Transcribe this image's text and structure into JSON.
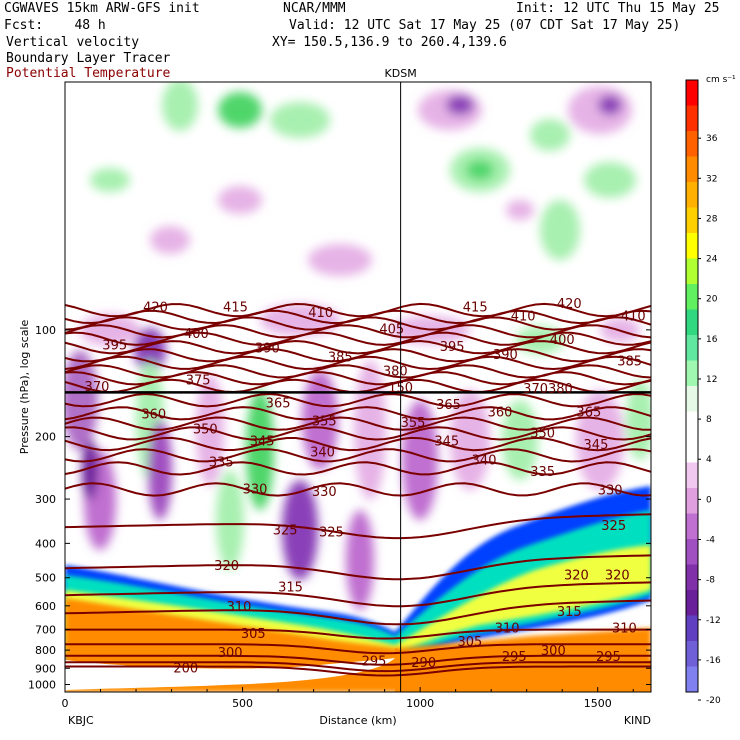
{
  "header": {
    "title": "CGWAVES 15km ARW-GFS init",
    "fcst_label": "Fcst:",
    "fcst_value": "48 h",
    "org": "NCAR/MMM",
    "init": "Init: 12 UTC Thu 15 May 25",
    "valid": "Valid: 12 UTC Sat 17 May 25 (07 CDT Sat 17 May 25)",
    "xy": "XY= 150.5,136.9 to 260.4,139.6",
    "var1": "Vertical velocity",
    "var2": "Boundary Layer Tracer",
    "var3": "Potential Temperature"
  },
  "colors": {
    "potential_temperature": "#7a0000",
    "strong_sink": "#6a1f9a",
    "weak_sink": "#e6b3e6",
    "weak_rise": "#a8f0b0",
    "moderate_rise": "#4fd66a",
    "tracer_low": "#0040ff",
    "tracer_mid": "#00e0c0",
    "tracer_high": "#f0ff40",
    "tracer_max": "#ff8c00"
  },
  "chart_data": {
    "type": "heatmap",
    "description_fields": [
      "Vertical velocity",
      "Boundary Layer Tracer",
      "Potential Temperature"
    ],
    "x_axis": {
      "label": "Distance (km)",
      "range": [
        0,
        1650
      ],
      "ticks": [
        0,
        500,
        1000,
        1500
      ],
      "left_station": "KBJC",
      "right_station": "KIND"
    },
    "y_axis": {
      "label": "Pressure (hPa), log scale",
      "scale": "log",
      "range_hpa": [
        1050,
        20
      ],
      "ticks": [
        100,
        200,
        300,
        400,
        500,
        600,
        700,
        800,
        900,
        1000
      ]
    },
    "station_marker": {
      "name": "KDSM",
      "x_km": 945
    },
    "colorbar": {
      "units": "cm s⁻¹",
      "tick_labels": [
        "36",
        "32",
        "28",
        "24",
        "20",
        "16",
        "12",
        "8",
        "4",
        "0",
        "-4",
        "-8",
        "-12",
        "-16",
        "-20"
      ],
      "colors": [
        "#ff0000",
        "#ff3000",
        "#ff6000",
        "#ff8c00",
        "#ffb000",
        "#ffd000",
        "#ffff00",
        "#b0ff30",
        "#60f060",
        "#30d880",
        "#60e8a0",
        "#a0f8b0",
        "#e6f9e6",
        "#ffffff",
        "#ffffff",
        "#f0c8f0",
        "#e0a0e0",
        "#c070d0",
        "#a050c0",
        "#8030a8",
        "#6a1f9a",
        "#6040c0",
        "#7060d8",
        "#8080f0"
      ]
    },
    "isentropes_K": [
      200,
      290,
      295,
      300,
      305,
      310,
      315,
      320,
      325,
      330,
      335,
      340,
      345,
      350,
      355,
      360,
      365,
      370,
      375,
      380,
      385,
      390,
      395,
      400,
      405,
      410,
      415,
      420
    ],
    "isentrope_labels": [
      {
        "text": "420",
        "x_km": 255,
        "p": 86
      },
      {
        "text": "415",
        "x_km": 480,
        "p": 86
      },
      {
        "text": "410",
        "x_km": 720,
        "p": 89
      },
      {
        "text": "405",
        "x_km": 920,
        "p": 99
      },
      {
        "text": "415",
        "x_km": 1155,
        "p": 86
      },
      {
        "text": "410",
        "x_km": 1290,
        "p": 91
      },
      {
        "text": "420",
        "x_km": 1420,
        "p": 84
      },
      {
        "text": "410",
        "x_km": 1600,
        "p": 91
      },
      {
        "text": "395",
        "x_km": 140,
        "p": 110
      },
      {
        "text": "400",
        "x_km": 370,
        "p": 102
      },
      {
        "text": "390",
        "x_km": 570,
        "p": 112
      },
      {
        "text": "385",
        "x_km": 775,
        "p": 119
      },
      {
        "text": "395",
        "x_km": 1090,
        "p": 111
      },
      {
        "text": "390",
        "x_km": 1240,
        "p": 117
      },
      {
        "text": "400",
        "x_km": 1400,
        "p": 106
      },
      {
        "text": "385",
        "x_km": 1590,
        "p": 122
      },
      {
        "text": "380",
        "x_km": 930,
        "p": 130
      },
      {
        "text": "370",
        "x_km": 90,
        "p": 144
      },
      {
        "text": "375",
        "x_km": 375,
        "p": 138
      },
      {
        "text": "370380",
        "x_km": 1360,
        "p": 146
      },
      {
        "text": "360",
        "x_km": 250,
        "p": 172
      },
      {
        "text": "365",
        "x_km": 600,
        "p": 160
      },
      {
        "text": "365",
        "x_km": 1080,
        "p": 162
      },
      {
        "text": "360",
        "x_km": 1225,
        "p": 170
      },
      {
        "text": "365",
        "x_km": 1475,
        "p": 170
      },
      {
        "text": "350",
        "x_km": 395,
        "p": 190
      },
      {
        "text": "355",
        "x_km": 730,
        "p": 180
      },
      {
        "text": "355",
        "x_km": 980,
        "p": 182
      },
      {
        "text": "345",
        "x_km": 555,
        "p": 205
      },
      {
        "text": "345",
        "x_km": 1075,
        "p": 205
      },
      {
        "text": "350",
        "x_km": 1345,
        "p": 195
      },
      {
        "text": "345",
        "x_km": 1495,
        "p": 210
      },
      {
        "text": "335",
        "x_km": 440,
        "p": 235
      },
      {
        "text": "340",
        "x_km": 725,
        "p": 220
      },
      {
        "text": "340",
        "x_km": 1180,
        "p": 232
      },
      {
        "text": "335",
        "x_km": 1345,
        "p": 250
      },
      {
        "text": "330",
        "x_km": 535,
        "p": 280
      },
      {
        "text": "330",
        "x_km": 730,
        "p": 285
      },
      {
        "text": "330",
        "x_km": 1535,
        "p": 282
      },
      {
        "text": "325",
        "x_km": 620,
        "p": 365
      },
      {
        "text": "325",
        "x_km": 750,
        "p": 370
      },
      {
        "text": "325",
        "x_km": 1545,
        "p": 355
      },
      {
        "text": "320",
        "x_km": 455,
        "p": 460
      },
      {
        "text": "320",
        "x_km": 1440,
        "p": 490
      },
      {
        "text": "320",
        "x_km": 1555,
        "p": 490
      },
      {
        "text": "315",
        "x_km": 635,
        "p": 530
      },
      {
        "text": "315",
        "x_km": 1420,
        "p": 620
      },
      {
        "text": "310",
        "x_km": 490,
        "p": 600
      },
      {
        "text": "310",
        "x_km": 1245,
        "p": 690
      },
      {
        "text": "310",
        "x_km": 1575,
        "p": 690
      },
      {
        "text": "305",
        "x_km": 530,
        "p": 715
      },
      {
        "text": "305",
        "x_km": 1140,
        "p": 755
      },
      {
        "text": "300",
        "x_km": 465,
        "p": 810
      },
      {
        "text": "300",
        "x_km": 1375,
        "p": 800
      },
      {
        "text": "295",
        "x_km": 870,
        "p": 855
      },
      {
        "text": "295",
        "x_km": 1265,
        "p": 830
      },
      {
        "text": "295",
        "x_km": 1530,
        "p": 830
      },
      {
        "text": "290",
        "x_km": 1010,
        "p": 865
      },
      {
        "text": "200",
        "x_km": 340,
        "p": 895
      },
      {
        "text": "150",
        "x_km": 945,
        "p": 145
      }
    ]
  }
}
